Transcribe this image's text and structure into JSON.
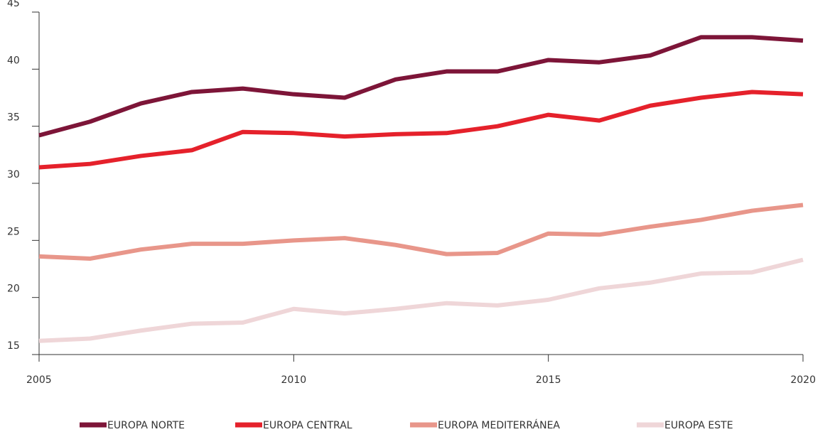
{
  "chart_data": {
    "type": "line",
    "x": [
      2005,
      2006,
      2007,
      2008,
      2009,
      2010,
      2011,
      2012,
      2013,
      2014,
      2015,
      2016,
      2017,
      2018,
      2019,
      2020
    ],
    "series": [
      {
        "name": "EUROPA NORTE",
        "color": "#7d1538",
        "values": [
          34.2,
          35.4,
          37.0,
          38.0,
          38.3,
          37.8,
          37.5,
          39.1,
          39.8,
          39.8,
          40.8,
          40.6,
          41.2,
          42.8,
          42.8,
          42.5
        ]
      },
      {
        "name": "EUROPA CENTRAL",
        "color": "#e5212b",
        "values": [
          31.4,
          31.7,
          32.4,
          32.9,
          34.5,
          34.4,
          34.1,
          34.3,
          34.4,
          35.0,
          36.0,
          35.5,
          36.8,
          37.5,
          38.0,
          37.8
        ]
      },
      {
        "name": "EUROPA MEDITERRÁNEA",
        "color": "#e8968a",
        "values": [
          23.6,
          23.4,
          24.2,
          24.7,
          24.7,
          25.0,
          25.2,
          24.6,
          23.8,
          23.9,
          25.6,
          25.5,
          26.2,
          26.8,
          27.6,
          28.1
        ]
      },
      {
        "name": "EUROPA ESTE",
        "color": "#efd6d8",
        "values": [
          16.2,
          16.4,
          17.1,
          17.7,
          17.8,
          19.0,
          18.6,
          19.0,
          19.5,
          19.3,
          19.8,
          20.8,
          21.3,
          22.1,
          22.2,
          23.3
        ]
      }
    ],
    "xlim": [
      2005,
      2020
    ],
    "xticks": [
      2005,
      2010,
      2015,
      2020
    ],
    "ylim": [
      15,
      45
    ],
    "yticks": [
      15,
      20,
      25,
      30,
      35,
      40,
      45
    ],
    "legend": "bottom"
  }
}
